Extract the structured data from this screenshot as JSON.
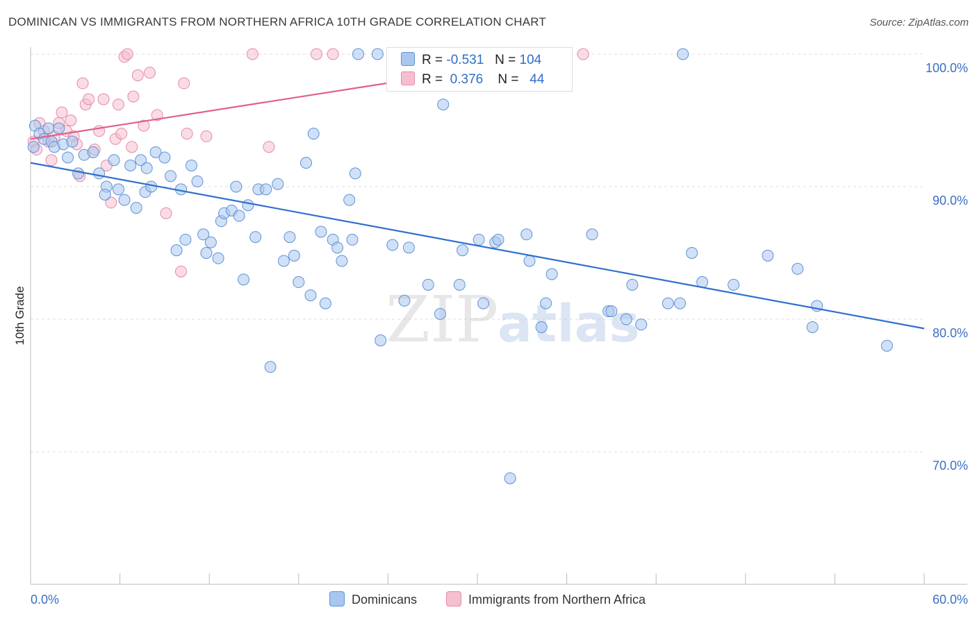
{
  "header": {
    "title": "DOMINICAN VS IMMIGRANTS FROM NORTHERN AFRICA 10TH GRADE CORRELATION CHART",
    "source": "Source: ZipAtlas.com"
  },
  "legend": {
    "row1": {
      "r_label": "R =",
      "r_value": "-0.531",
      "n_label": "N =",
      "n_value": "104"
    },
    "row2": {
      "r_label": "R =",
      "r_value": "0.376",
      "n_label": "N =",
      "n_value": "44"
    }
  },
  "bottom_legend": {
    "series1": "Dominicans",
    "series2": "Immigrants from Northern Africa"
  },
  "watermark": {
    "zip": "ZIP",
    "atlas": "atlas"
  },
  "colors": {
    "blue_fill": "#a9c6ef",
    "blue_stroke": "#5e92d6",
    "blue_line": "#2f6fcf",
    "pink_fill": "#f6bfd0",
    "pink_stroke": "#e68aa7",
    "pink_line": "#e0608a",
    "axis_text": "#3a6fc4",
    "grid": "#dddddd"
  },
  "chart_data": {
    "type": "scatter",
    "xlabel": "",
    "ylabel": "10th Grade",
    "xlim": [
      0,
      60
    ],
    "ylim": [
      60,
      100
    ],
    "x_tick_labels": [
      "0.0%",
      "60.0%"
    ],
    "y_ticks": [
      70,
      80,
      90,
      100
    ],
    "y_tick_labels": [
      "70.0%",
      "80.0%",
      "90.0%",
      "100.0%"
    ],
    "grid": true,
    "legend_position": "top-center",
    "series": [
      {
        "name": "Dominicans",
        "color": "#a9c6ef",
        "trend": {
          "x": [
            0,
            60
          ],
          "y": [
            91.8,
            79.3
          ]
        },
        "points": [
          [
            0.3,
            94.6
          ],
          [
            0.6,
            94.0
          ],
          [
            0.9,
            93.6
          ],
          [
            1.2,
            94.4
          ],
          [
            1.4,
            93.4
          ],
          [
            1.6,
            93.0
          ],
          [
            1.9,
            94.4
          ],
          [
            2.2,
            93.2
          ],
          [
            2.5,
            92.2
          ],
          [
            2.8,
            93.4
          ],
          [
            3.2,
            91.0
          ],
          [
            3.6,
            92.4
          ],
          [
            4.2,
            92.6
          ],
          [
            4.6,
            91.0
          ],
          [
            5.1,
            90.0
          ],
          [
            5.0,
            89.4
          ],
          [
            5.6,
            92.0
          ],
          [
            5.9,
            89.8
          ],
          [
            6.3,
            89.0
          ],
          [
            6.7,
            91.6
          ],
          [
            7.1,
            88.4
          ],
          [
            7.4,
            92.0
          ],
          [
            7.7,
            89.6
          ],
          [
            7.8,
            91.4
          ],
          [
            8.1,
            90.0
          ],
          [
            8.4,
            92.6
          ],
          [
            9.0,
            92.2
          ],
          [
            9.4,
            90.8
          ],
          [
            9.8,
            85.2
          ],
          [
            10.1,
            89.8
          ],
          [
            10.4,
            86.0
          ],
          [
            10.8,
            91.6
          ],
          [
            11.2,
            90.4
          ],
          [
            11.6,
            86.4
          ],
          [
            11.8,
            85.0
          ],
          [
            12.1,
            85.8
          ],
          [
            12.6,
            84.6
          ],
          [
            12.8,
            87.4
          ],
          [
            13.0,
            88.0
          ],
          [
            13.5,
            88.2
          ],
          [
            13.8,
            90.0
          ],
          [
            14.0,
            87.8
          ],
          [
            14.3,
            83.0
          ],
          [
            14.6,
            88.6
          ],
          [
            15.1,
            86.2
          ],
          [
            15.3,
            89.8
          ],
          [
            15.8,
            89.8
          ],
          [
            16.1,
            76.4
          ],
          [
            16.6,
            90.2
          ],
          [
            17.0,
            84.4
          ],
          [
            17.4,
            86.2
          ],
          [
            17.7,
            84.8
          ],
          [
            18.0,
            82.8
          ],
          [
            18.5,
            91.8
          ],
          [
            18.8,
            81.8
          ],
          [
            19.0,
            94.0
          ],
          [
            19.5,
            86.6
          ],
          [
            19.8,
            81.2
          ],
          [
            20.3,
            86.0
          ],
          [
            20.6,
            85.4
          ],
          [
            20.9,
            84.4
          ],
          [
            21.4,
            89.0
          ],
          [
            21.6,
            86.0
          ],
          [
            21.8,
            91.0
          ],
          [
            22.0,
            100.0
          ],
          [
            23.3,
            100.0
          ],
          [
            23.5,
            78.4
          ],
          [
            24.3,
            85.6
          ],
          [
            25.1,
            81.4
          ],
          [
            25.4,
            85.4
          ],
          [
            26.7,
            82.6
          ],
          [
            27.5,
            80.4
          ],
          [
            27.7,
            96.2
          ],
          [
            28.8,
            82.6
          ],
          [
            29.0,
            85.2
          ],
          [
            30.1,
            86.0
          ],
          [
            30.4,
            81.2
          ],
          [
            31.2,
            85.8
          ],
          [
            31.4,
            86.0
          ],
          [
            32.2,
            68.0
          ],
          [
            32.6,
            100.0
          ],
          [
            33.5,
            84.4
          ],
          [
            33.3,
            86.4
          ],
          [
            34.3,
            79.4
          ],
          [
            34.6,
            81.2
          ],
          [
            35.0,
            83.4
          ],
          [
            37.7,
            86.4
          ],
          [
            38.8,
            80.6
          ],
          [
            39.0,
            80.6
          ],
          [
            40.0,
            80.0
          ],
          [
            40.4,
            82.6
          ],
          [
            41.0,
            79.6
          ],
          [
            42.8,
            81.2
          ],
          [
            43.6,
            81.2
          ],
          [
            43.8,
            100.0
          ],
          [
            44.4,
            85.0
          ],
          [
            45.1,
            82.8
          ],
          [
            47.2,
            82.6
          ],
          [
            49.5,
            84.8
          ],
          [
            51.5,
            83.8
          ],
          [
            52.5,
            79.4
          ],
          [
            52.8,
            81.0
          ],
          [
            57.5,
            78.0
          ],
          [
            0.2,
            93.0
          ]
        ]
      },
      {
        "name": "Immigrants from Northern Africa",
        "color": "#f6bfd0",
        "trend": {
          "x": [
            0,
            36.4
          ],
          "y": [
            93.6,
            100.0
          ]
        },
        "points": [
          [
            0.2,
            93.4
          ],
          [
            0.4,
            92.8
          ],
          [
            0.6,
            94.8
          ],
          [
            0.9,
            94.2
          ],
          [
            1.2,
            93.4
          ],
          [
            1.4,
            92.0
          ],
          [
            1.6,
            93.8
          ],
          [
            1.9,
            94.8
          ],
          [
            2.1,
            95.6
          ],
          [
            2.4,
            94.2
          ],
          [
            2.7,
            95.0
          ],
          [
            2.9,
            93.8
          ],
          [
            3.1,
            93.2
          ],
          [
            3.3,
            90.8
          ],
          [
            3.5,
            97.8
          ],
          [
            3.7,
            96.2
          ],
          [
            3.9,
            96.6
          ],
          [
            4.3,
            92.8
          ],
          [
            4.6,
            94.2
          ],
          [
            4.9,
            96.6
          ],
          [
            5.1,
            91.6
          ],
          [
            5.4,
            88.8
          ],
          [
            5.7,
            93.6
          ],
          [
            5.9,
            96.2
          ],
          [
            6.1,
            94.0
          ],
          [
            6.3,
            99.8
          ],
          [
            6.5,
            100.0
          ],
          [
            6.8,
            93.0
          ],
          [
            6.9,
            96.8
          ],
          [
            7.2,
            98.4
          ],
          [
            7.6,
            94.6
          ],
          [
            8.0,
            98.6
          ],
          [
            8.5,
            95.4
          ],
          [
            9.1,
            88.0
          ],
          [
            10.1,
            83.6
          ],
          [
            10.3,
            97.8
          ],
          [
            10.5,
            94.0
          ],
          [
            11.8,
            93.8
          ],
          [
            14.9,
            100.0
          ],
          [
            16.0,
            93.0
          ],
          [
            19.2,
            100.0
          ],
          [
            20.3,
            100.0
          ],
          [
            33.4,
            100.0
          ],
          [
            37.1,
            100.0
          ]
        ]
      }
    ]
  }
}
